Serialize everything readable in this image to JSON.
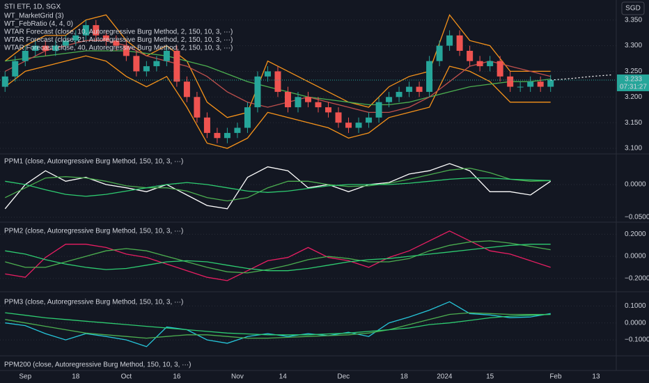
{
  "chart_data": [
    {
      "type": "candlestick",
      "title": "STI ETF, 1D, SGX",
      "annotations": [
        "WT_MarketGrid (3)",
        "WT_FebRatio (4, 4, 0)",
        "WTAR Forecast (close, 10, Autoregressive Burg Method, 2, 150, 10, 3, ···)",
        "WTAR Forecast (close, 21, Autoregressive Burg Method, 2, 150, 10, 3, ···)",
        "WTAR Forecast (close, 40, Autoregressive Burg Method, 2, 150, 10, 3, ···)"
      ],
      "currency": "SGD",
      "last_price": 3.233,
      "countdown": "07:31:27",
      "last_price_color": "#26a69a",
      "up_color": "#26a69a",
      "down_color": "#ef5350",
      "x": [
        -4,
        -2,
        0,
        2,
        4,
        6,
        8,
        10,
        12,
        14,
        16,
        18,
        20,
        22,
        24,
        26,
        28,
        30,
        32,
        34,
        36,
        38,
        40,
        42,
        44,
        46,
        48,
        50,
        52,
        54,
        56,
        58,
        60,
        62,
        64,
        66,
        68,
        70,
        72,
        74,
        76,
        78,
        80,
        82,
        84,
        86,
        88,
        90,
        92,
        94,
        96,
        98,
        100,
        102,
        104
      ],
      "open": [
        3.22,
        3.24,
        3.27,
        3.29,
        3.3,
        3.29,
        3.3,
        3.31,
        3.32,
        3.34,
        3.32,
        3.31,
        3.3,
        3.28,
        3.25,
        3.26,
        3.27,
        3.29,
        3.23,
        3.2,
        3.16,
        3.13,
        3.12,
        3.13,
        3.14,
        3.18,
        3.24,
        3.25,
        3.21,
        3.18,
        3.2,
        3.19,
        3.18,
        3.17,
        3.15,
        3.14,
        3.15,
        3.16,
        3.19,
        3.2,
        3.21,
        3.22,
        3.21,
        3.27,
        3.3,
        3.32,
        3.29,
        3.27,
        3.26,
        3.27,
        3.24,
        3.22,
        3.22,
        3.23,
        3.22
      ],
      "high": [
        3.25,
        3.28,
        3.3,
        3.31,
        3.31,
        3.31,
        3.32,
        3.33,
        3.35,
        3.35,
        3.33,
        3.32,
        3.31,
        3.29,
        3.27,
        3.28,
        3.3,
        3.3,
        3.24,
        3.21,
        3.17,
        3.14,
        3.14,
        3.15,
        3.19,
        3.25,
        3.26,
        3.26,
        3.22,
        3.21,
        3.21,
        3.2,
        3.19,
        3.18,
        3.16,
        3.16,
        3.17,
        3.2,
        3.21,
        3.22,
        3.23,
        3.23,
        3.28,
        3.31,
        3.33,
        3.33,
        3.3,
        3.28,
        3.28,
        3.28,
        3.25,
        3.23,
        3.24,
        3.24,
        3.243
      ],
      "low": [
        3.21,
        3.23,
        3.26,
        3.28,
        3.28,
        3.28,
        3.29,
        3.3,
        3.31,
        3.31,
        3.3,
        3.29,
        3.27,
        3.24,
        3.24,
        3.25,
        3.26,
        3.22,
        3.19,
        3.15,
        3.12,
        3.11,
        3.11,
        3.12,
        3.13,
        3.17,
        3.23,
        3.2,
        3.17,
        3.17,
        3.18,
        3.17,
        3.16,
        3.14,
        3.13,
        3.13,
        3.14,
        3.15,
        3.18,
        3.19,
        3.2,
        3.2,
        3.2,
        3.26,
        3.29,
        3.28,
        3.26,
        3.25,
        3.25,
        3.23,
        3.21,
        3.21,
        3.21,
        3.21,
        3.21
      ],
      "close": [
        3.24,
        3.27,
        3.29,
        3.3,
        3.29,
        3.3,
        3.31,
        3.32,
        3.34,
        3.32,
        3.31,
        3.3,
        3.28,
        3.25,
        3.26,
        3.27,
        3.29,
        3.23,
        3.2,
        3.16,
        3.13,
        3.12,
        3.13,
        3.14,
        3.18,
        3.24,
        3.25,
        3.21,
        3.18,
        3.2,
        3.19,
        3.18,
        3.17,
        3.15,
        3.14,
        3.15,
        3.16,
        3.19,
        3.2,
        3.21,
        3.22,
        3.21,
        3.27,
        3.3,
        3.32,
        3.29,
        3.27,
        3.26,
        3.27,
        3.24,
        3.22,
        3.22,
        3.23,
        3.22,
        3.233
      ],
      "line_x": [
        -4,
        0,
        4,
        8,
        12,
        16,
        20,
        24,
        28,
        32,
        36,
        40,
        44,
        48,
        52,
        56,
        60,
        64,
        68,
        72,
        76,
        80,
        84,
        88,
        92,
        96,
        100,
        104
      ],
      "lines": [
        {
          "color": "#f7931a",
          "values": [
            3.27,
            3.3,
            3.32,
            3.32,
            3.35,
            3.36,
            3.31,
            3.28,
            3.3,
            3.27,
            3.19,
            3.16,
            3.17,
            3.27,
            3.25,
            3.23,
            3.21,
            3.19,
            3.18,
            3.22,
            3.24,
            3.25,
            3.36,
            3.31,
            3.3,
            3.25,
            3.25,
            3.25
          ]
        },
        {
          "color": "#f7931a",
          "values": [
            3.22,
            3.25,
            3.26,
            3.27,
            3.28,
            3.27,
            3.24,
            3.22,
            3.24,
            3.18,
            3.11,
            3.1,
            3.12,
            3.17,
            3.16,
            3.15,
            3.14,
            3.12,
            3.13,
            3.16,
            3.17,
            3.18,
            3.26,
            3.25,
            3.23,
            3.19,
            3.19,
            3.19
          ]
        },
        {
          "color": "#4caf50",
          "values": [
            3.27,
            3.275,
            3.28,
            3.285,
            3.29,
            3.29,
            3.29,
            3.285,
            3.28,
            3.27,
            3.26,
            3.245,
            3.23,
            3.22,
            3.21,
            3.2,
            3.195,
            3.19,
            3.185,
            3.185,
            3.19,
            3.2,
            3.21,
            3.22,
            3.225,
            3.23,
            3.23,
            3.235
          ]
        },
        {
          "color": "#c0504d",
          "values": [
            3.25,
            3.27,
            3.29,
            3.3,
            3.31,
            3.31,
            3.3,
            3.28,
            3.27,
            3.26,
            3.24,
            3.21,
            3.19,
            3.18,
            3.19,
            3.2,
            3.19,
            3.18,
            3.17,
            3.17,
            3.18,
            3.2,
            3.23,
            3.26,
            3.27,
            3.26,
            3.25,
            3.24
          ]
        }
      ],
      "forecast": {
        "x": [
          104,
          108,
          112,
          116
        ],
        "values": [
          3.233,
          3.236,
          3.24,
          3.243
        ],
        "color": "#ffffff",
        "dashed": true
      },
      "ylim": [
        3.0905,
        3.389
      ],
      "yticks": [
        {
          "value": 3.1,
          "label": "3.100"
        },
        {
          "value": 3.15,
          "label": "3.150"
        },
        {
          "value": 3.2,
          "label": "3.200"
        },
        {
          "value": 3.25,
          "label": "3.250"
        },
        {
          "value": 3.3,
          "label": "3.300"
        },
        {
          "value": 3.35,
          "label": "3.350"
        }
      ],
      "xlim": [
        -5,
        117
      ],
      "xticks": [
        {
          "value": 0,
          "label": "Sep"
        },
        {
          "value": 10,
          "label": "18"
        },
        {
          "value": 20,
          "label": "Oct"
        },
        {
          "value": 30,
          "label": "16"
        },
        {
          "value": 42,
          "label": "Nov"
        },
        {
          "value": 51,
          "label": "14"
        },
        {
          "value": 63,
          "label": "Dec"
        },
        {
          "value": 75,
          "label": "18"
        },
        {
          "value": 83,
          "label": "2024"
        },
        {
          "value": 92,
          "label": "15"
        },
        {
          "value": 105,
          "label": "Feb"
        },
        {
          "value": 113,
          "label": "13"
        }
      ]
    },
    {
      "type": "line",
      "title": "PPM1 (close, Autoregressive Burg Method, 150, 10, 3, ···)",
      "x": [
        -4,
        0,
        4,
        8,
        12,
        16,
        20,
        24,
        28,
        32,
        36,
        40,
        44,
        48,
        52,
        56,
        60,
        64,
        68,
        72,
        76,
        80,
        84,
        88,
        92,
        96,
        100,
        104
      ],
      "series": [
        {
          "color": "#ffffff",
          "values": [
            -0.037,
            0,
            0.021,
            0.005,
            0.011,
            0,
            -0.005,
            -0.011,
            0,
            -0.016,
            -0.032,
            -0.037,
            0.011,
            0.027,
            0.021,
            -0.005,
            0,
            -0.011,
            0,
            0.003,
            0.016,
            0.021,
            0.032,
            0.021,
            -0.011,
            -0.011,
            -0.016,
            0.005
          ]
        },
        {
          "color": "#4caf50",
          "values": [
            -0.02,
            -0.005,
            0.01,
            0.012,
            0.01,
            0.005,
            -0.002,
            -0.005,
            -0.005,
            -0.01,
            -0.02,
            -0.025,
            -0.02,
            -0.005,
            0.005,
            0.005,
            0.0,
            -0.003,
            -0.002,
            0.002,
            0.008,
            0.015,
            0.022,
            0.025,
            0.018,
            0.008,
            0.005,
            0.006
          ]
        },
        {
          "color": "#2ecc71",
          "values": [
            0.005,
            0.0,
            -0.008,
            -0.015,
            -0.018,
            -0.015,
            -0.01,
            -0.005,
            0.0,
            0.003,
            0.0,
            -0.005,
            -0.01,
            -0.012,
            -0.01,
            -0.006,
            -0.002,
            0.0,
            0.0,
            0.0,
            0.002,
            0.005,
            0.008,
            0.01,
            0.01,
            0.008,
            0.007,
            0.006
          ]
        }
      ],
      "ylim": [
        -0.0564,
        0.0457
      ],
      "yticks": [
        {
          "value": 0,
          "label": "0.0000"
        },
        {
          "value": -0.05,
          "label": "−0.0500"
        }
      ]
    },
    {
      "type": "line",
      "title": "PPM2 (close, Autoregressive Burg Method, 150, 10, 3, ···)",
      "x": [
        -4,
        0,
        4,
        8,
        12,
        16,
        20,
        24,
        28,
        32,
        36,
        40,
        44,
        48,
        52,
        56,
        60,
        64,
        68,
        72,
        76,
        80,
        84,
        88,
        92,
        96,
        100,
        104
      ],
      "series": [
        {
          "color": "#e91e63",
          "values": [
            -0.16,
            -0.19,
            -0.01,
            0.11,
            0.11,
            0.08,
            0.02,
            -0.01,
            -0.07,
            -0.13,
            -0.19,
            -0.22,
            -0.13,
            -0.04,
            -0.01,
            0.08,
            -0.01,
            -0.04,
            -0.1,
            -0.01,
            0.05,
            0.14,
            0.23,
            0.14,
            0.05,
            0.02,
            -0.04,
            -0.1
          ]
        },
        {
          "color": "#4caf50",
          "values": [
            -0.05,
            -0.1,
            -0.1,
            -0.05,
            0.0,
            0.05,
            0.07,
            0.05,
            0.0,
            -0.05,
            -0.1,
            -0.14,
            -0.15,
            -0.12,
            -0.08,
            -0.03,
            0.0,
            -0.02,
            -0.05,
            -0.05,
            -0.02,
            0.05,
            0.1,
            0.13,
            0.14,
            0.12,
            0.09,
            0.06
          ]
        },
        {
          "color": "#2ecc71",
          "values": [
            0.05,
            0.02,
            -0.03,
            -0.07,
            -0.1,
            -0.12,
            -0.11,
            -0.08,
            -0.05,
            -0.04,
            -0.05,
            -0.08,
            -0.11,
            -0.13,
            -0.13,
            -0.11,
            -0.08,
            -0.05,
            -0.03,
            -0.02,
            0.0,
            0.02,
            0.04,
            0.06,
            0.08,
            0.1,
            0.11,
            0.11
          ]
        }
      ],
      "ylim": [
        -0.315,
        0.291
      ],
      "yticks": [
        {
          "value": 0.2,
          "label": "0.2000"
        },
        {
          "value": 0,
          "label": "0.0000"
        },
        {
          "value": -0.2,
          "label": "−0.2000"
        }
      ]
    },
    {
      "type": "line",
      "title": "PPM3 (close, Autoregressive Burg Method, 150, 10, 3, ···)",
      "x": [
        -4,
        0,
        4,
        8,
        12,
        16,
        20,
        24,
        28,
        32,
        36,
        40,
        44,
        48,
        52,
        56,
        60,
        64,
        68,
        72,
        76,
        80,
        84,
        88,
        92,
        96,
        100,
        104
      ],
      "series": [
        {
          "color": "#26c6da",
          "values": [
            0,
            -0.016,
            -0.063,
            -0.1,
            -0.063,
            -0.08,
            -0.1,
            -0.14,
            -0.024,
            -0.04,
            -0.1,
            -0.12,
            -0.08,
            -0.063,
            -0.08,
            -0.063,
            -0.075,
            -0.055,
            -0.08,
            0,
            0.035,
            0.075,
            0.125,
            0.055,
            0.047,
            0.031,
            0.035,
            0.055
          ]
        },
        {
          "color": "#4caf50",
          "values": [
            0.02,
            0.0,
            -0.02,
            -0.04,
            -0.06,
            -0.07,
            -0.08,
            -0.09,
            -0.08,
            -0.07,
            -0.07,
            -0.08,
            -0.09,
            -0.09,
            -0.085,
            -0.08,
            -0.075,
            -0.07,
            -0.06,
            -0.04,
            -0.01,
            0.02,
            0.05,
            0.06,
            0.055,
            0.05,
            0.05,
            0.05
          ]
        },
        {
          "color": "#2ecc71",
          "values": [
            0.06,
            0.045,
            0.03,
            0.02,
            0.01,
            0.0,
            -0.01,
            -0.02,
            -0.03,
            -0.04,
            -0.05,
            -0.06,
            -0.065,
            -0.07,
            -0.07,
            -0.07,
            -0.065,
            -0.06,
            -0.05,
            -0.04,
            -0.03,
            -0.01,
            0.0,
            0.015,
            0.03,
            0.04,
            0.045,
            0.05
          ]
        }
      ],
      "ylim": [
        -0.19,
        0.163
      ],
      "yticks": [
        {
          "value": 0.1,
          "label": "0.1000"
        },
        {
          "value": 0,
          "label": "0.0000"
        },
        {
          "value": -0.1,
          "label": "−0.1000"
        }
      ]
    },
    {
      "type": "line",
      "title": "PPM200 (close, Autoregressive Burg Method, 150, 10, 3, ···)"
    }
  ]
}
